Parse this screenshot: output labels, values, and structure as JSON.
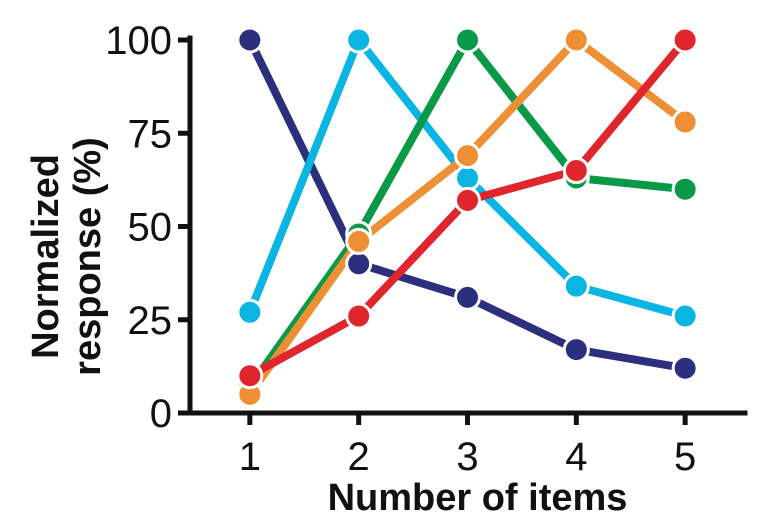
{
  "chart_data": {
    "type": "line",
    "xlabel": "Number of items",
    "ylabel": "Normalized response (%)",
    "ylabel_lines": [
      "Normalized",
      "response (%)"
    ],
    "x": [
      1,
      2,
      3,
      4,
      5
    ],
    "x_tick_labels": [
      "1",
      "2",
      "3",
      "4",
      "5"
    ],
    "y_ticks": [
      0,
      25,
      50,
      75,
      100
    ],
    "y_tick_labels": [
      "0",
      "25",
      "50",
      "75",
      "100"
    ],
    "xlim": [
      0.45,
      5.55
    ],
    "ylim": [
      0,
      100
    ],
    "grid": false,
    "series": [
      {
        "color": "#2b2f7e",
        "values": [
          100,
          40,
          31,
          17,
          12
        ]
      },
      {
        "color": "#0bb5e3",
        "values": [
          27,
          100,
          63,
          34,
          26
        ]
      },
      {
        "color": "#0a9a47",
        "values": [
          7,
          48,
          100,
          63,
          60
        ]
      },
      {
        "color": "#ef8f35",
        "values": [
          5,
          46,
          69,
          100,
          78
        ]
      },
      {
        "color": "#e0262d",
        "values": [
          10,
          26,
          57,
          65,
          100
        ]
      }
    ]
  }
}
